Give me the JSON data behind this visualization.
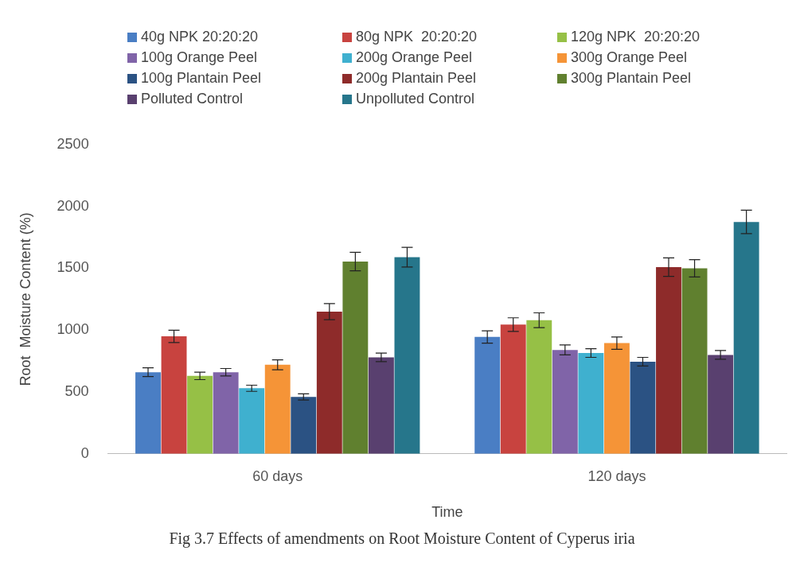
{
  "chart_data": {
    "type": "bar",
    "xlabel": "Time",
    "ylabel": "Root  Moisture Content (%)",
    "categories": [
      "60 days",
      "120 days"
    ],
    "series": [
      {
        "name": "40g NPK 20:20:20",
        "color": "#4a7ec4",
        "values": [
          660,
          945
        ],
        "errors": [
          35,
          50
        ]
      },
      {
        "name": "80g NPK  20:20:20",
        "color": "#c8433f",
        "values": [
          950,
          1045
        ],
        "errors": [
          50,
          55
        ]
      },
      {
        "name": "120g NPK  20:20:20",
        "color": "#96c046",
        "values": [
          630,
          1080
        ],
        "errors": [
          30,
          60
        ]
      },
      {
        "name": "100g Orange Peel",
        "color": "#8064a8",
        "values": [
          660,
          840
        ],
        "errors": [
          30,
          40
        ]
      },
      {
        "name": "200g Orange Peel",
        "color": "#3fb0cf",
        "values": [
          530,
          815
        ],
        "errors": [
          25,
          35
        ]
      },
      {
        "name": "300g Orange Peel",
        "color": "#f59437",
        "values": [
          720,
          895
        ],
        "errors": [
          40,
          50
        ]
      },
      {
        "name": "100g Plantain Peel",
        "color": "#2b5283",
        "values": [
          460,
          745
        ],
        "errors": [
          25,
          35
        ]
      },
      {
        "name": "200g Plantain Peel",
        "color": "#8e2b2a",
        "values": [
          1150,
          1510
        ],
        "errors": [
          65,
          75
        ]
      },
      {
        "name": "300g Plantain Peel",
        "color": "#60802f",
        "values": [
          1555,
          1500
        ],
        "errors": [
          75,
          70
        ]
      },
      {
        "name": "Polluted Control",
        "color": "#59406f",
        "values": [
          780,
          800
        ],
        "errors": [
          35,
          35
        ]
      },
      {
        "name": "Unpolluted Control",
        "color": "#26768b",
        "values": [
          1590,
          1875
        ],
        "errors": [
          80,
          95
        ]
      }
    ],
    "ylim": [
      0,
      2500
    ],
    "yticks": [
      0,
      500,
      1000,
      1500,
      2000,
      2500
    ],
    "grid": false,
    "legend": "top",
    "annotations": [
      "Fig 3.7 Effects of amendments  on Root Moisture Content of Cyperus iria"
    ]
  }
}
